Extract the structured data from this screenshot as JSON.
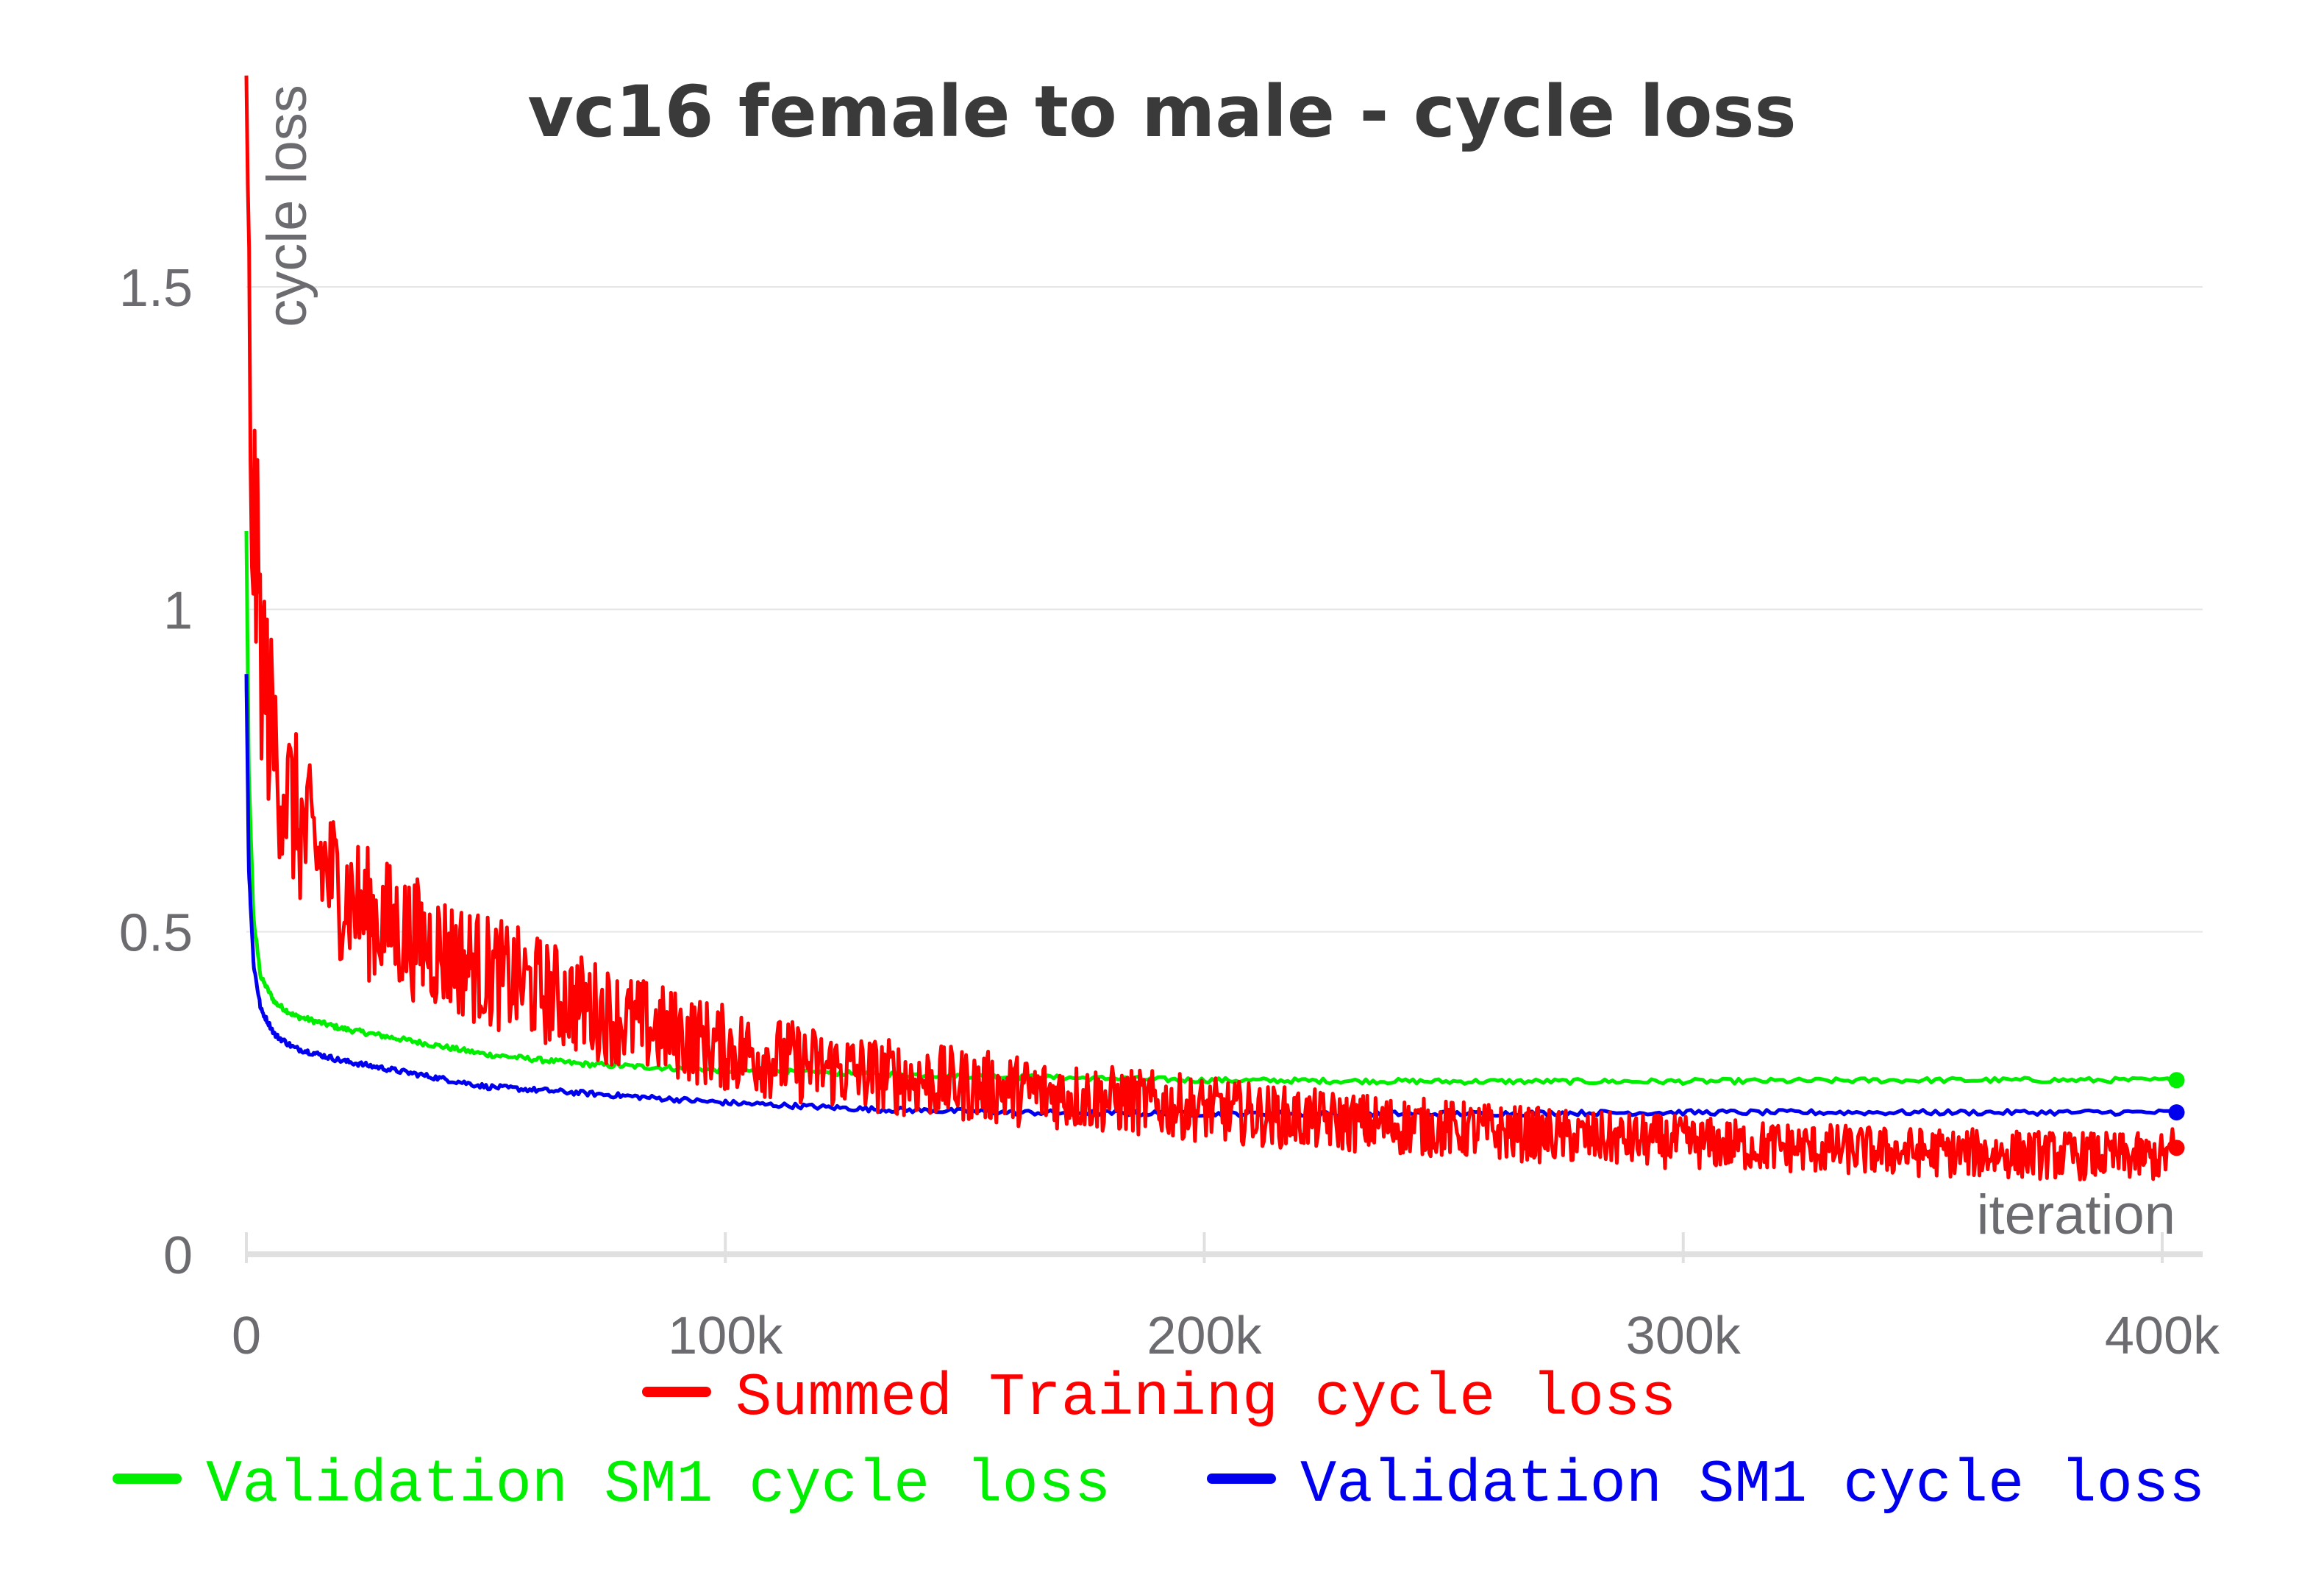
{
  "chart_data": {
    "type": "line",
    "title": "vc16 female to male - cycle loss",
    "xlabel": "iteration",
    "ylabel": "cycle loss",
    "xlim": [
      0,
      400000
    ],
    "ylim": [
      0,
      1.6
    ],
    "x_ticks": [
      {
        "value": 0,
        "label": "0"
      },
      {
        "value": 100000,
        "label": "100k"
      },
      {
        "value": 200000,
        "label": "200k"
      },
      {
        "value": 300000,
        "label": "300k"
      },
      {
        "value": 400000,
        "label": "400k"
      }
    ],
    "y_ticks": [
      {
        "value": 0,
        "label": "0"
      },
      {
        "value": 0.5,
        "label": "0.5"
      },
      {
        "value": 1,
        "label": "1"
      },
      {
        "value": 1.5,
        "label": "1.5"
      }
    ],
    "grid": true,
    "legend_position": "bottom",
    "series": [
      {
        "name": "Summed Training cycle loss",
        "color": "#ff0000",
        "noisy": true,
        "x": [
          0,
          1000,
          3000,
          5000,
          8000,
          12000,
          18000,
          25000,
          35000,
          50000,
          65000,
          80000,
          100000,
          120000,
          140000,
          160000,
          180000,
          200000,
          220000,
          250000,
          280000,
          310000,
          340000,
          370000,
          400000,
          403000
        ],
        "y": [
          1.65,
          1.2,
          0.95,
          0.82,
          0.72,
          0.65,
          0.58,
          0.53,
          0.49,
          0.44,
          0.4,
          0.36,
          0.32,
          0.29,
          0.27,
          0.255,
          0.24,
          0.225,
          0.21,
          0.195,
          0.18,
          0.17,
          0.16,
          0.155,
          0.15,
          0.165
        ]
      },
      {
        "name": "Validation SM1 cycle loss",
        "color": "#00ee00",
        "noisy": false,
        "x": [
          0,
          500,
          1500,
          3000,
          6000,
          10000,
          20000,
          35000,
          50000,
          70000,
          100000,
          130000,
          160000,
          200000,
          250000,
          300000,
          350000,
          403000
        ],
        "y": [
          1.12,
          0.75,
          0.52,
          0.43,
          0.39,
          0.37,
          0.35,
          0.33,
          0.31,
          0.295,
          0.285,
          0.28,
          0.275,
          0.27,
          0.268,
          0.268,
          0.27,
          0.27
        ]
      },
      {
        "name": "Validation SM1 cycle loss",
        "color": "#0000ee",
        "noisy": false,
        "x": [
          0,
          500,
          1500,
          3000,
          6000,
          10000,
          20000,
          35000,
          50000,
          70000,
          100000,
          130000,
          160000,
          200000,
          250000,
          300000,
          350000,
          403000
        ],
        "y": [
          0.9,
          0.6,
          0.45,
          0.38,
          0.34,
          0.32,
          0.3,
          0.28,
          0.26,
          0.25,
          0.235,
          0.225,
          0.22,
          0.218,
          0.218,
          0.22,
          0.22,
          0.22
        ]
      }
    ]
  }
}
